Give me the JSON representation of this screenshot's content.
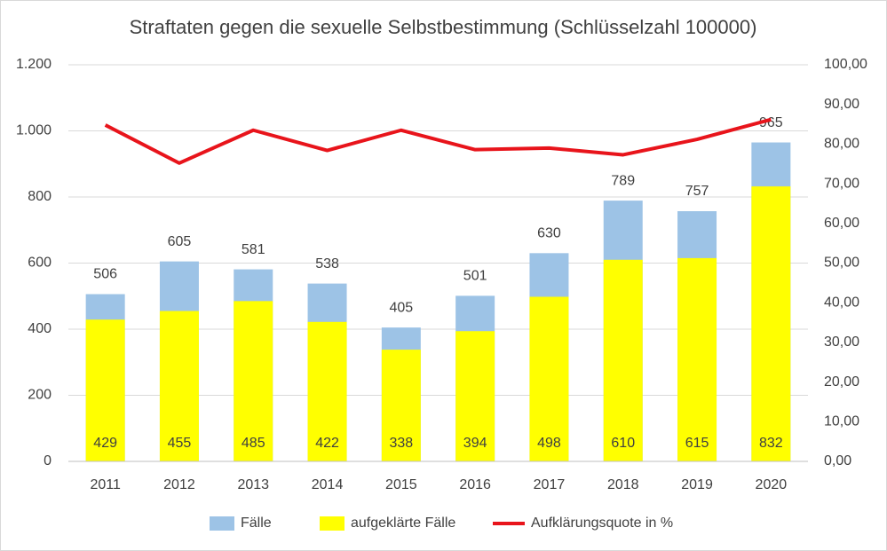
{
  "chart_data": {
    "type": "bar",
    "title": "Straftaten gegen die sexuelle Selbstbestimmung (Schlüsselzahl 100000)",
    "categories": [
      "2011",
      "2012",
      "2013",
      "2014",
      "2015",
      "2016",
      "2017",
      "2018",
      "2019",
      "2020"
    ],
    "series": [
      {
        "name": "Fälle",
        "color": "#9dc3e6",
        "type": "bar",
        "values": [
          506,
          605,
          581,
          538,
          405,
          501,
          630,
          789,
          757,
          965
        ]
      },
      {
        "name": "aufgeklärte Fälle",
        "color": "#ffff00",
        "type": "bar",
        "values": [
          429,
          455,
          485,
          422,
          338,
          394,
          498,
          610,
          615,
          832
        ]
      },
      {
        "name": "Aufklärungsquote in %",
        "color": "#e8141b",
        "type": "line",
        "axis": "y2",
        "values": [
          84.8,
          75.2,
          83.5,
          78.4,
          83.5,
          78.6,
          79.0,
          77.3,
          81.2,
          86.2
        ]
      }
    ],
    "ylim": [
      0,
      1200
    ],
    "yticks": [
      0,
      200,
      400,
      600,
      800,
      {
        "value": 1000,
        "label": "1.000"
      },
      {
        "value": 1200,
        "label": "1.200"
      }
    ],
    "y2lim": [
      0,
      100
    ],
    "y2ticks": [
      {
        "value": 0,
        "label": "0,00"
      },
      {
        "value": 10,
        "label": "10,00"
      },
      {
        "value": 20,
        "label": "20,00"
      },
      {
        "value": 30,
        "label": "30,00"
      },
      {
        "value": 40,
        "label": "40,00"
      },
      {
        "value": 50,
        "label": "50,00"
      },
      {
        "value": 60,
        "label": "60,00"
      },
      {
        "value": 70,
        "label": "70,00"
      },
      {
        "value": 80,
        "label": "80,00"
      },
      {
        "value": 90,
        "label": "90,00"
      },
      {
        "value": 100,
        "label": "100,00"
      }
    ],
    "grid": true,
    "legend": "bottom"
  }
}
